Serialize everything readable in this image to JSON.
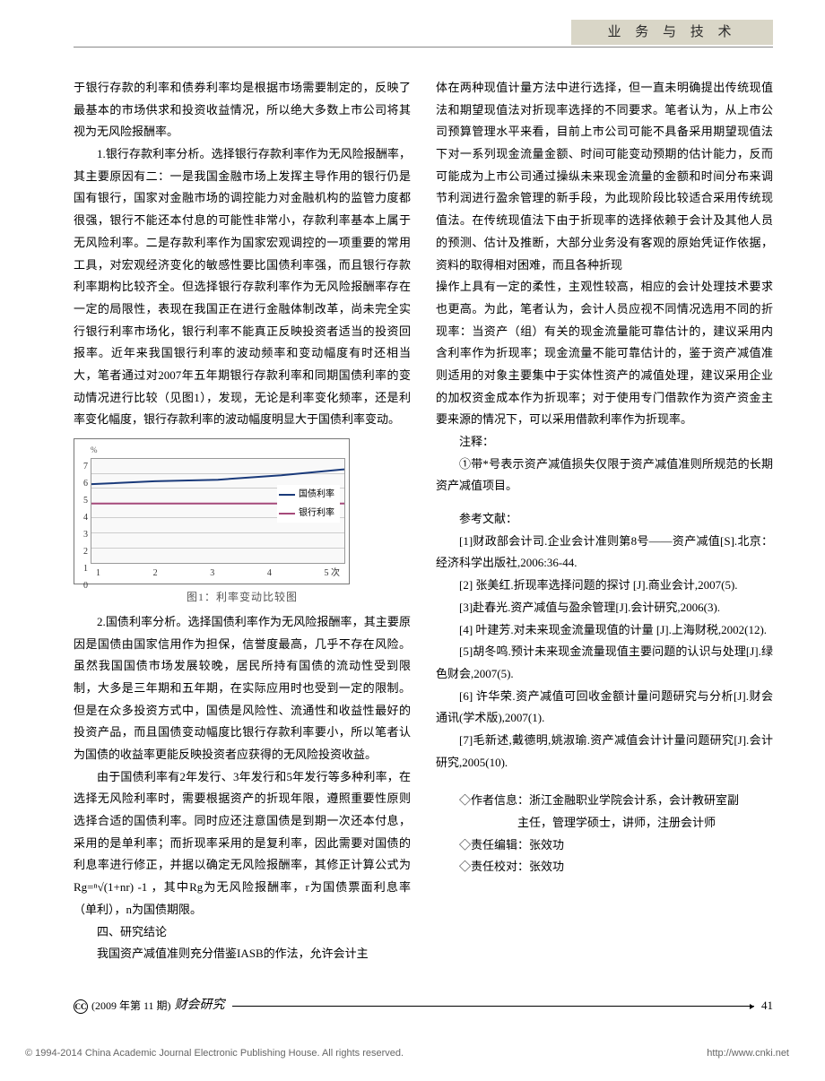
{
  "header": {
    "section": "业 务 与 技 术"
  },
  "left": {
    "p1": "于银行存款的利率和债券利率均是根据市场需要制定的，反映了最基本的市场供求和投资收益情况，所以绝大多数上市公司将其视为无风险报酬率。",
    "p2": "1.银行存款利率分析。选择银行存款利率作为无风险报酬率，其主要原因有二：一是我国金融市场上发挥主导作用的银行仍是国有银行，国家对金融市场的调控能力对金融机构的监管力度都很强，银行不能还本付息的可能性非常小，存款利率基本上属于无风险利率。二是存款利率作为国家宏观调控的一项重要的常用工具，对宏观经济变化的敏感性要比国债利率强，而且银行存款利率期构比较齐全。但选择银行存款利率作为无风险报酬率存在一定的局限性，表现在我国正在进行金融体制改革，尚未完全实行银行利率市场化，银行利率不能真正反映投资者适当的投资回报率。近年来我国银行利率的波动频率和变动幅度有时还相当大，笔者通过对2007年五年期银行存款利率和同期国债利率的变动情况进行比较（见图1），发现，无论是利率变化频率，还是利率变化幅度，银行存款利率的波动幅度明显大于国债利率变动。",
    "p3": "2.国债利率分析。选择国债利率作为无风险报酬率，其主要原因是国债由国家信用作为担保，信誉度最高，几乎不存在风险。虽然我国国债市场发展较晚，居民所持有国债的流动性受到限制，大多是三年期和五年期，在实际应用时也受到一定的限制。但是在众多投资方式中，国债是风险性、流通性和收益性最好的投资产品，而且国债变动幅度比银行存款利率要小，所以笔者认为国债的收益率更能反映投资者应获得的无风险投资收益。",
    "p4": "由于国债利率有2年发行、3年发行和5年发行等多种利率，在选择无风险利率时，需要根据资产的折现年限，遵照重要性原则选择合适的国债利率。同时应还注意国债是到期一次还本付息，采用的是单利率；而折现率采用的是复利率，因此需要对国债的利息率进行修正，并据以确定无风险报酬率，其修正计算公式为Rg=ⁿ√(1+nr) -1 ，其中Rg为无风险报酬率，r为国债票面利息率（单利），n为国债期限。",
    "p5h": "四、研究结论",
    "p5": "我国资产减值准则充分借鉴IASB的作法，允许会计主"
  },
  "right": {
    "p1": "体在两种现值计量方法中进行选择，但一直未明确提出传统现值法和期望现值法对折现率选择的不同要求。笔者认为，从上市公司预算管理水平来看，目前上市公司可能不具备采用期望现值法下对一系列现金流量金额、时间可能变动预期的估计能力，反而可能成为上市公司通过操纵未来现金流量的金额和时间分布来调节利润进行盈余管理的新手段，为此现阶段比较适合采用传统现值法。在传统现值法下由于折现率的选择依赖于会计及其他人员的预测、估计及推断，大部分业务没有客观的原始凭证作依据，资料的取得相对困难，而且各种折现",
    "p2": "操作上具有一定的柔性，主观性较高，相应的会计处理技术要求也更高。为此，笔者认为，会计人员应视不同情况选用不同的折现率：当资产（组）有关的现金流量能可靠估计的，建议采用内含利率作为折现率；现金流量不能可靠估计的，鉴于资产减值准则适用的对象主要集中于实体性资产的减值处理，建议采用企业的加权资金成本作为折现率；对于使用专门借款作为资产资金主要来源的情况下，可以采用借款利率作为折现率。",
    "notes_h": "注释：",
    "notes": "①带*号表示资产减值损失仅限于资产减值准则所规范的长期资产减值项目。",
    "refs_h": "参考文献：",
    "refs": [
      "[1]财政部会计司.企业会计准则第8号——资产减值[S].北京：经济科学出版社,2006:36-44.",
      "[2] 张美红.折现率选择问题的探讨 [J].商业会计,2007(5).",
      "[3]赴春光.资产减值与盈余管理[J].会计研究,2006(3).",
      "[4] 叶建芳.对未来现金流量现值的计量 [J].上海财税,2002(12).",
      "[5]胡冬鸣.预计未来现金流量现值主要问题的认识与处理[J].绿色财会,2007(5).",
      "[6] 许华荣.资产减值可回收金额计量问题研究与分析[J].财会通讯(学术版),2007(1).",
      "[7]毛新述,戴德明,姚淑瑜.资产减值会计计量问题研究[J].会计研究,2005(10)."
    ],
    "author": [
      "◇作者信息：浙江金融职业学院会计系，会计教研室副",
      "　　　　　主任，管理学硕士，讲师，注册会计师",
      "◇责任编辑：张效功",
      "◇责任校对：张效功"
    ]
  },
  "chart": {
    "type": "line",
    "caption": "图1：利率变动比较图",
    "y_unit": "%",
    "y_ticks": [
      "7",
      "6",
      "5",
      "4",
      "3",
      "2",
      "1",
      "0"
    ],
    "x_ticks": [
      "1",
      "2",
      "3",
      "4",
      "5 次"
    ],
    "ylim": [
      0,
      7
    ],
    "grid_color": "#cccccc",
    "background_color": "#f9f9f9",
    "border_color": "#999999",
    "series": [
      {
        "name": "国债利率",
        "color": "#1a3a7a",
        "width": 2,
        "values": [
          5.3,
          5.5,
          5.6,
          5.9,
          6.3
        ]
      },
      {
        "name": "银行利率",
        "color": "#a64a7a",
        "width": 2,
        "values": [
          4.0,
          4.0,
          4.0,
          4.0,
          4.0
        ]
      }
    ],
    "legend_fontsize": 10,
    "axis_fontsize": 10
  },
  "footer": {
    "issue": "(2009 年第 11 期)",
    "journal": "财会研究",
    "page": "41",
    "copyright_left": "© 1994-2014 China Academic Journal Electronic Publishing House. All rights reserved.",
    "copyright_right": "http://www.cnki.net"
  }
}
